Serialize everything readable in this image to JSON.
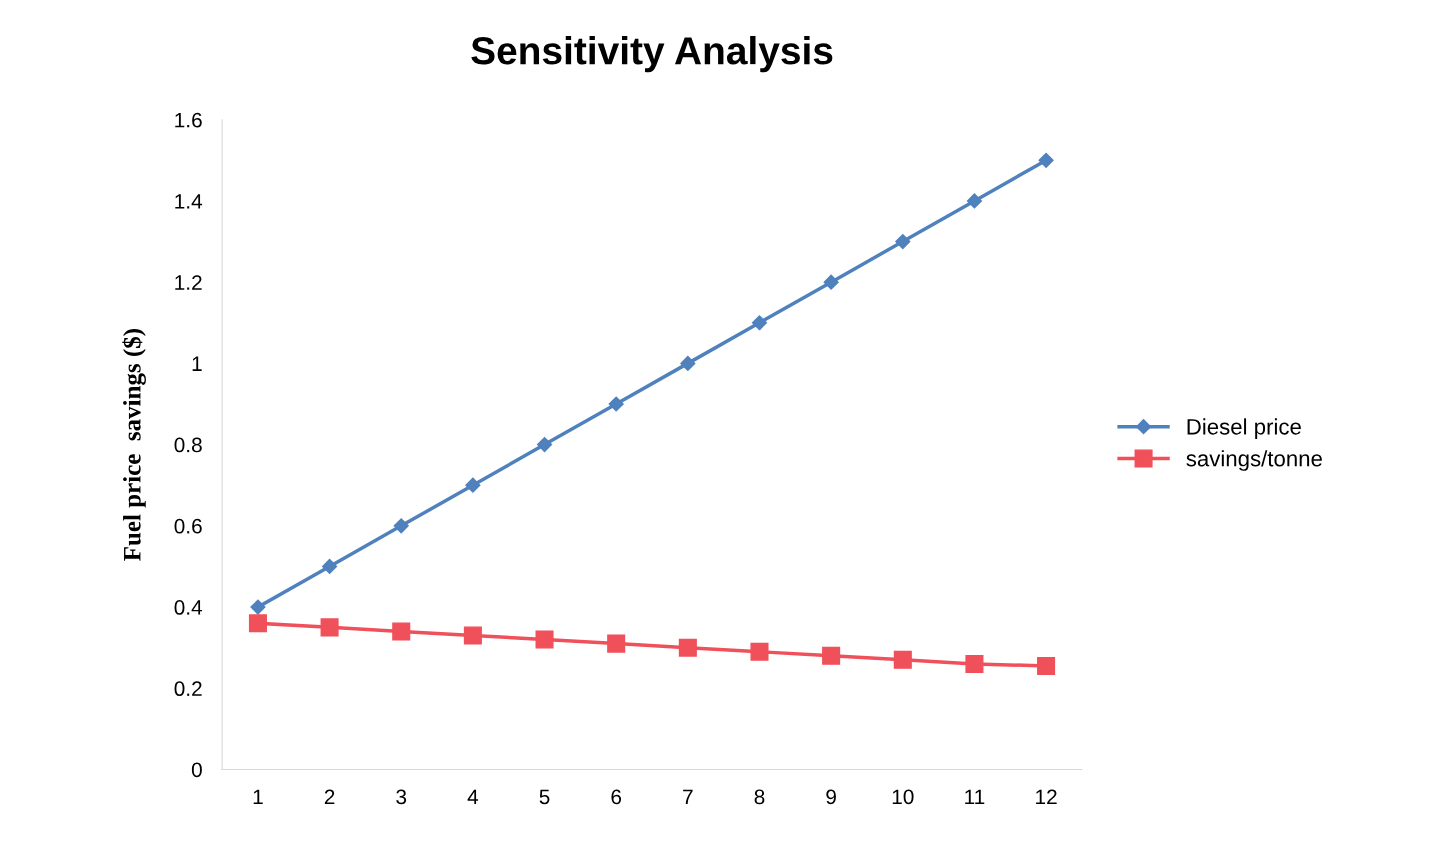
{
  "chart_data": {
    "type": "line",
    "title": "Sensitivity Analysis",
    "ylabel": "Fuel price  savings ($)",
    "categories": [
      "1",
      "2",
      "3",
      "4",
      "5",
      "6",
      "7",
      "8",
      "9",
      "10",
      "11",
      "12"
    ],
    "series": [
      {
        "name": "Diesel price",
        "color": "#4f81bd",
        "marker": "diamond",
        "values": [
          0.4,
          0.5,
          0.6,
          0.7,
          0.8,
          0.9,
          1.0,
          1.1,
          1.2,
          1.3,
          1.4,
          1.5
        ]
      },
      {
        "name": "savings/tonne",
        "color": "#f0505a",
        "marker": "square",
        "values": [
          0.36,
          0.35,
          0.34,
          0.33,
          0.32,
          0.31,
          0.3,
          0.29,
          0.28,
          0.27,
          0.26,
          0.255
        ]
      }
    ],
    "ylim": [
      0,
      1.6
    ],
    "yticks": [
      0,
      0.2,
      0.4,
      0.6,
      0.8,
      1,
      1.2,
      1.4,
      1.6
    ],
    "grid": false,
    "legend": "right"
  }
}
